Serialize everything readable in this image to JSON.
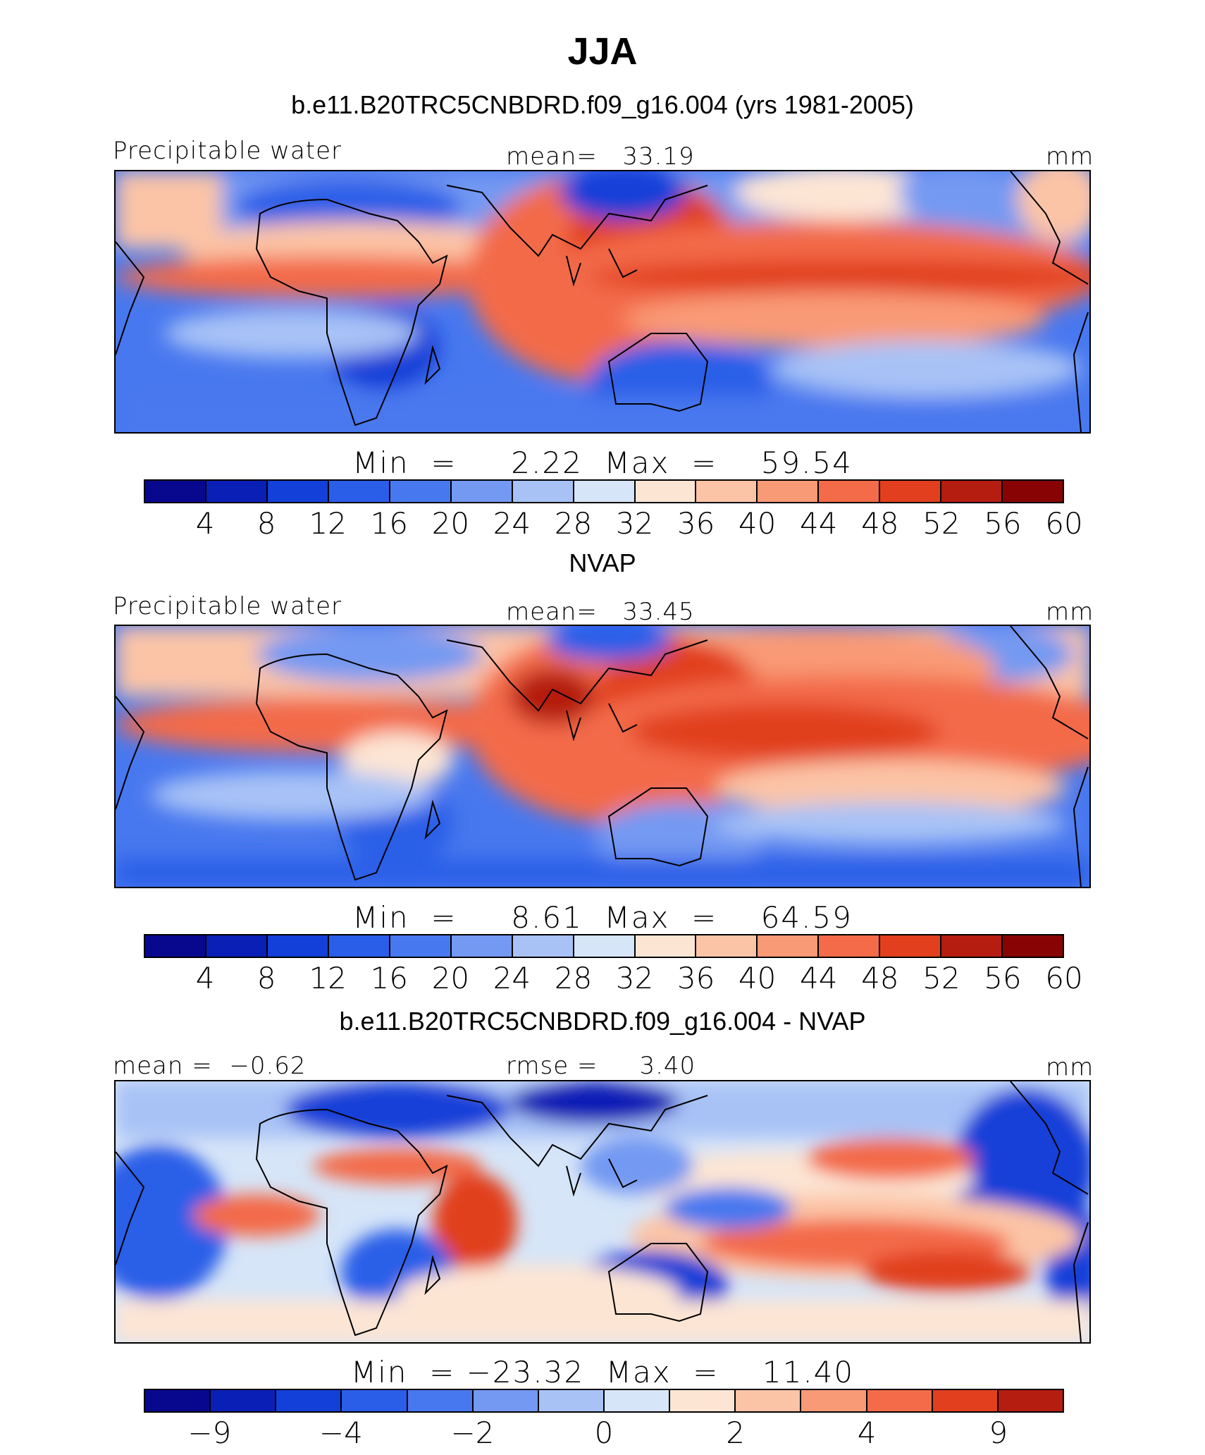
{
  "title": "JJA",
  "colors": [
    "#08088f",
    "#0a1fb5",
    "#1240d8",
    "#2a5ee8",
    "#4878ef",
    "#7399f2",
    "#a8c2f6",
    "#d6e5f8",
    "#fde5d4",
    "#fcc4a6",
    "#f99a76",
    "#f36b48",
    "#e13f1e",
    "#b51d10",
    "#880404"
  ],
  "panels": [
    {
      "title": "b.e11.B20TRC5CNBDRD.f09_g16.004 (yrs 1981-2005)",
      "left_label": "Precipitable water",
      "center_label": "mean=   33.19",
      "right_label": "mm",
      "minmax": "Min  =     2.22  Max  =    59.54",
      "ticks": [
        "4",
        "8",
        "12",
        "16",
        "20",
        "24",
        "28",
        "32",
        "36",
        "40",
        "44",
        "48",
        "52",
        "56",
        "60"
      ],
      "icon": "precipitable-water-map-icon"
    },
    {
      "title": "NVAP",
      "left_label": "Precipitable water",
      "center_label": "mean=   33.45",
      "right_label": "mm",
      "minmax": "Min  =     8.61  Max  =    64.59",
      "ticks": [
        "4",
        "8",
        "12",
        "16",
        "20",
        "24",
        "28",
        "32",
        "36",
        "40",
        "44",
        "48",
        "52",
        "56",
        "60"
      ],
      "icon": "precipitable-water-map-icon"
    },
    {
      "title": "b.e11.B20TRC5CNBDRD.f09_g16.004 - NVAP",
      "left_label": "mean =  −0.62",
      "center_label": "rmse =     3.40",
      "right_label": "mm",
      "minmax": "Min  = −23.32  Max  =    11.40",
      "ticks": [
        "−9",
        "",
        "−4",
        "",
        "−2",
        "",
        "0",
        "",
        "2",
        "",
        "4",
        "",
        "9"
      ],
      "icon": "difference-map-icon"
    }
  ]
}
